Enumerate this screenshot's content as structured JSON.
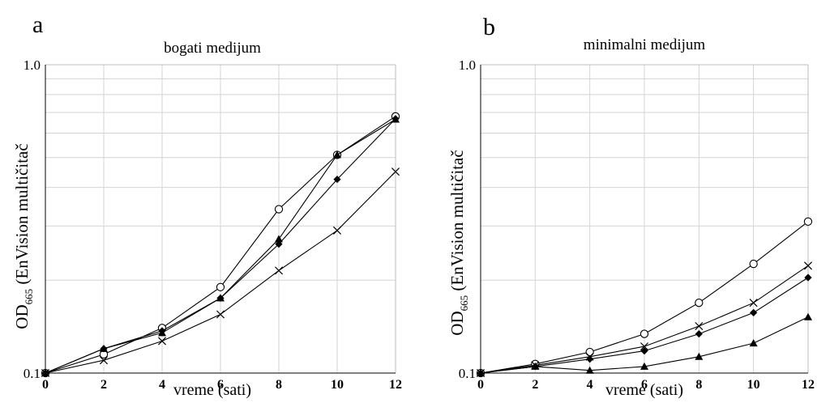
{
  "chart_data": [
    {
      "panel_label": "a",
      "type": "line",
      "title": "bogati medijum",
      "xlabel": "vreme (sati)",
      "ylabel_main": "OD",
      "ylabel_sub": "665",
      "ylabel_rest": " (EnVision multičitač",
      "yscale": "log",
      "xlim": [
        0,
        12
      ],
      "ylim": [
        0.1,
        1.0
      ],
      "yticks": [
        "0.1",
        "1.0"
      ],
      "xticks": [
        "0",
        "2",
        "4",
        "6",
        "8",
        "10",
        "12"
      ],
      "x": [
        0,
        2,
        4,
        6,
        8,
        10,
        12
      ],
      "grid": true,
      "series": [
        {
          "marker": "circle",
          "values": [
            0.1,
            0.115,
            0.14,
            0.19,
            0.34,
            0.51,
            0.68
          ]
        },
        {
          "marker": "diamond",
          "values": [
            0.1,
            0.12,
            0.137,
            0.175,
            0.262,
            0.425,
            0.668
          ]
        },
        {
          "marker": "triangle",
          "values": [
            0.1,
            0.12,
            0.135,
            0.175,
            0.272,
            0.51,
            0.665
          ]
        },
        {
          "marker": "x",
          "values": [
            0.1,
            0.11,
            0.127,
            0.155,
            0.215,
            0.29,
            0.45
          ]
        }
      ]
    },
    {
      "panel_label": "b",
      "type": "line",
      "title": "minimalni medijum",
      "xlabel": "vreme (sati)",
      "ylabel_main": "OD",
      "ylabel_sub": "665",
      "ylabel_rest": " (EnVision multičitač",
      "yscale": "log",
      "xlim": [
        0,
        12
      ],
      "ylim": [
        0.1,
        1.0
      ],
      "yticks": [
        "0.1",
        "1.0"
      ],
      "xticks": [
        "0",
        "2",
        "4",
        "6",
        "8",
        "10",
        "12"
      ],
      "x": [
        0,
        2,
        4,
        6,
        8,
        10,
        12
      ],
      "grid": true,
      "series": [
        {
          "marker": "circle",
          "values": [
            0.1,
            0.107,
            0.117,
            0.134,
            0.169,
            0.226,
            0.31
          ]
        },
        {
          "marker": "x",
          "values": [
            0.1,
            0.106,
            0.113,
            0.122,
            0.142,
            0.169,
            0.223
          ]
        },
        {
          "marker": "diamond",
          "values": [
            0.1,
            0.105,
            0.111,
            0.118,
            0.134,
            0.157,
            0.204
          ]
        },
        {
          "marker": "triangle",
          "values": [
            0.1,
            0.105,
            0.102,
            0.105,
            0.113,
            0.125,
            0.152
          ]
        }
      ]
    }
  ]
}
